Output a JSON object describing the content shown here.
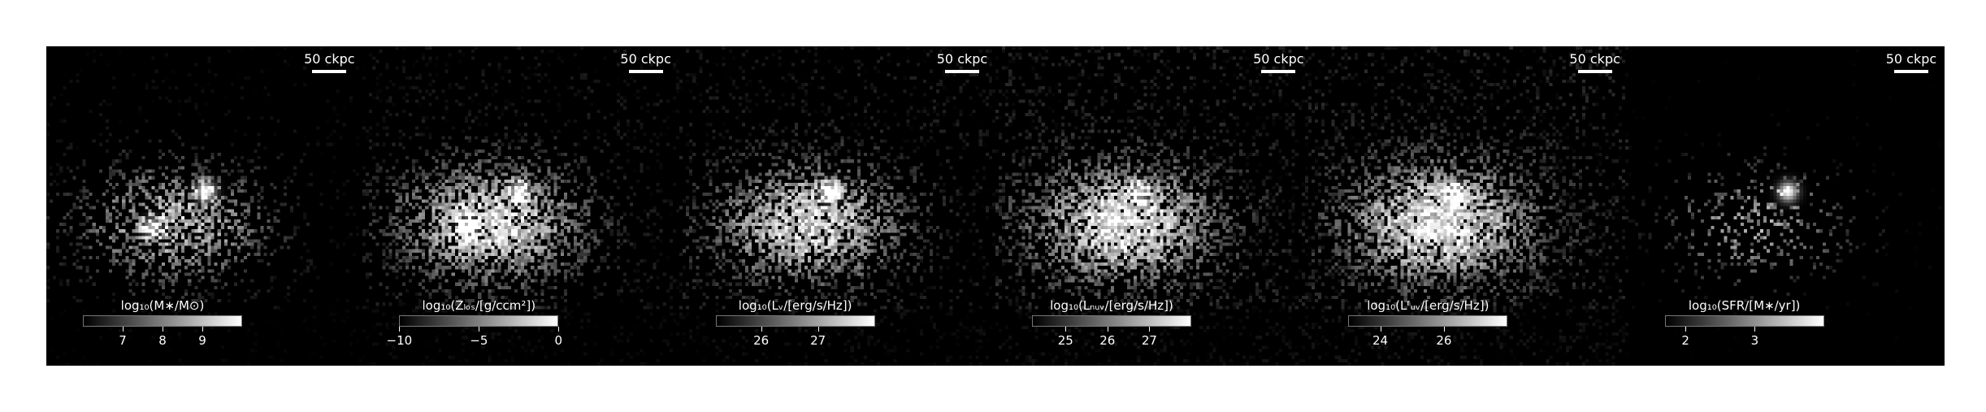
{
  "scale_bar_text": "50 ckpc",
  "panels": [
    {
      "name": "stellar-mass",
      "colorbar_label": "log₁₀(M∗/M⊙)",
      "ticks": [
        {
          "v": 7,
          "t": "7"
        },
        {
          "v": 8,
          "t": "8"
        },
        {
          "v": 9,
          "t": "9"
        }
      ],
      "range": [
        6.0,
        10.0
      ],
      "map": {
        "density": 0.55,
        "brightness": 0.45,
        "hot": [
          [
            0.5,
            0.45,
            1.0
          ],
          [
            0.33,
            0.56,
            0.7
          ]
        ],
        "noise": 0.35
      }
    },
    {
      "name": "metallicity",
      "colorbar_label": "log₁₀(Zₗₒₛ/[g/ccm²])",
      "ticks": [
        {
          "v": -10,
          "t": "−10"
        },
        {
          "v": -5,
          "t": "−5"
        },
        {
          "v": 0,
          "t": "0"
        }
      ],
      "range": [
        -10,
        0
      ],
      "map": {
        "density": 0.8,
        "brightness": 0.6,
        "hot": [
          [
            0.49,
            0.45,
            1.0
          ],
          [
            0.33,
            0.56,
            0.8
          ]
        ],
        "noise": 0.6
      }
    },
    {
      "name": "luminosity-v",
      "colorbar_label": "log₁₀(Lᵥ/[erg/s/Hz])",
      "ticks": [
        {
          "v": 26,
          "t": "26"
        },
        {
          "v": 27,
          "t": "27"
        }
      ],
      "range": [
        25.2,
        28.0
      ],
      "map": {
        "density": 0.75,
        "brightness": 0.55,
        "hot": [
          [
            0.47,
            0.45,
            1.0
          ]
        ],
        "noise": 0.7
      }
    },
    {
      "name": "luminosity-nuv",
      "colorbar_label": "log₁₀(Lₙᵤᵥ/[erg/s/Hz])",
      "ticks": [
        {
          "v": 25,
          "t": "25"
        },
        {
          "v": 26,
          "t": "26"
        },
        {
          "v": 27,
          "t": "27"
        }
      ],
      "range": [
        24.2,
        28.0
      ],
      "map": {
        "density": 0.8,
        "brightness": 0.6,
        "hot": [
          [
            0.45,
            0.45,
            0.8
          ]
        ],
        "noise": 0.9
      }
    },
    {
      "name": "luminosity-fuv",
      "colorbar_label": "log₁₀(Lᶠᵤᵥ/[erg/s/Hz])",
      "ticks": [
        {
          "v": 24,
          "t": "24"
        },
        {
          "v": 26,
          "t": "26"
        }
      ],
      "range": [
        23.0,
        28.0
      ],
      "map": {
        "density": 0.8,
        "brightness": 0.6,
        "hot": [
          [
            0.45,
            0.45,
            0.8
          ]
        ],
        "noise": 1.0
      }
    },
    {
      "name": "star-formation-rate",
      "colorbar_label": "log₁₀(SFR/[M∗/yr])",
      "ticks": [
        {
          "v": 2,
          "t": "2"
        },
        {
          "v": 3,
          "t": "3"
        }
      ],
      "range": [
        1.7,
        4.0
      ],
      "map": {
        "density": 0.25,
        "brightness": 0.3,
        "hot": [
          [
            0.5,
            0.45,
            1.0
          ]
        ],
        "noise": 0.15
      }
    }
  ]
}
